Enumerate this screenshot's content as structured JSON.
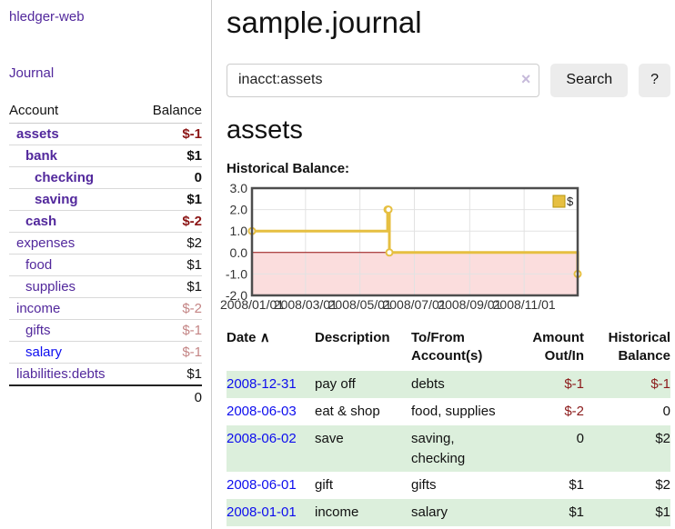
{
  "app": {
    "title": "hledger-web"
  },
  "icons": {
    "clear": "×",
    "sort_asc": "∧"
  },
  "sidebar": {
    "journal_link": "Journal",
    "accounts_table": {
      "headers": [
        "Account",
        "Balance"
      ],
      "rows": [
        {
          "name": "assets",
          "depth": 1,
          "balance": "$-1",
          "bold": true
        },
        {
          "name": "bank",
          "depth": 2,
          "balance": "$1",
          "bold": true
        },
        {
          "name": "checking",
          "depth": 3,
          "balance": "0",
          "bold": true
        },
        {
          "name": "saving",
          "depth": 3,
          "balance": "$1",
          "bold": true
        },
        {
          "name": "cash",
          "depth": 2,
          "balance": "$-2",
          "bold": true
        },
        {
          "name": "expenses",
          "depth": 1,
          "balance": "$2",
          "bold": false
        },
        {
          "name": "food",
          "depth": 2,
          "balance": "$1",
          "bold": false
        },
        {
          "name": "supplies",
          "depth": 2,
          "balance": "$1",
          "bold": false
        },
        {
          "name": "income",
          "depth": 1,
          "balance": "$-2",
          "bold": false
        },
        {
          "name": "gifts",
          "depth": 2,
          "balance": "$-1",
          "bold": false
        },
        {
          "name": "salary",
          "depth": 2,
          "balance": "$-1",
          "bold": false,
          "link_color": "blue"
        },
        {
          "name": "liabilities:debts",
          "depth": 1,
          "balance": "$1",
          "bold": false
        }
      ],
      "total": "0"
    }
  },
  "header": {
    "title": "sample.journal"
  },
  "search": {
    "query": "inacct:assets",
    "button_label": "Search",
    "help_label": "?"
  },
  "account_page": {
    "heading": "assets",
    "chart_label": "Historical Balance:"
  },
  "chart_data": {
    "type": "line",
    "title": "Historical Balance:",
    "x_type": "date",
    "xlim": [
      "2008/01/01",
      "2008/12/31"
    ],
    "ylim": [
      -2,
      3
    ],
    "y_ticks": [
      3,
      2,
      1,
      0,
      -1,
      -2
    ],
    "x_ticks": [
      "2008/01/01",
      "2008/03/01",
      "2008/05/01",
      "2008/07/01",
      "2008/09/01",
      "2008/11/01"
    ],
    "series": [
      {
        "name": "$",
        "style": "step",
        "points": [
          [
            "2008/01/01",
            1
          ],
          [
            "2008/06/01",
            2
          ],
          [
            "2008/06/02",
            2
          ],
          [
            "2008/06/03",
            0
          ],
          [
            "2008/12/31",
            -1
          ]
        ]
      }
    ],
    "legend": {
      "label": "$",
      "position": "top-right"
    },
    "grid": true,
    "negative_region_highlight": true,
    "colors": {
      "line": "#e6bf41",
      "marker_fill": "#ffffff",
      "negative_area": "#fbdddd",
      "zero_line": "#991111",
      "grid": "#e2e2e2",
      "border": "#4d4d4d",
      "tick_text": "#333333"
    }
  },
  "register": {
    "headers": [
      "Date",
      "Description",
      "To/From Account(s)",
      "Amount Out/In",
      "Historical Balance"
    ],
    "rows": [
      {
        "date": "2008-12-31",
        "description": "pay off",
        "accounts": "debts",
        "amount": "$-1",
        "balance": "$-1"
      },
      {
        "date": "2008-06-03",
        "description": "eat & shop",
        "accounts": "food, supplies",
        "amount": "$-2",
        "balance": "0"
      },
      {
        "date": "2008-06-02",
        "description": "save",
        "accounts": "saving, checking",
        "amount": "0",
        "balance": "$2"
      },
      {
        "date": "2008-06-01",
        "description": "gift",
        "accounts": "gifts",
        "amount": "$1",
        "balance": "$2"
      },
      {
        "date": "2008-01-01",
        "description": "income",
        "accounts": "salary",
        "amount": "$1",
        "balance": "$1"
      }
    ]
  }
}
